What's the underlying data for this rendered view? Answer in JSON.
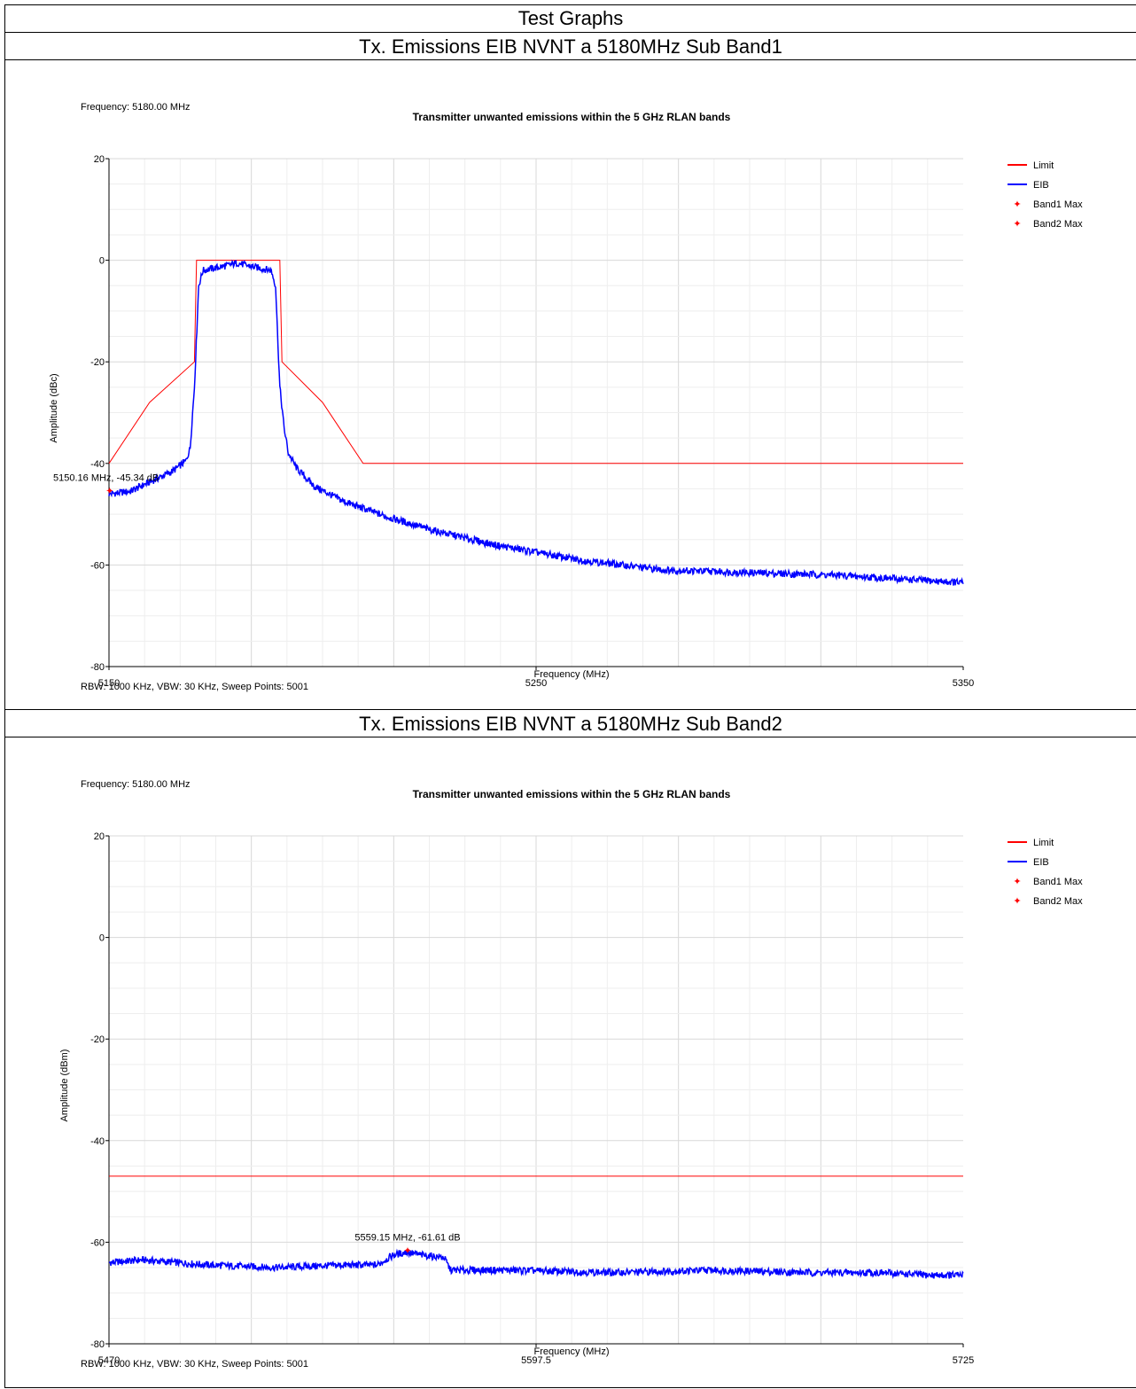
{
  "document": {
    "title": "Test Graphs"
  },
  "charts": [
    {
      "caption": "Tx. Emissions EIB NVNT a 5180MHz Sub Band1",
      "frequency_label": "Frequency: 5180.00 MHz",
      "footer": "RBW: 1000 KHz,  VBW: 30 KHz,  Sweep Points: 5001",
      "marker_label": "5150.16 MHz, -45.34 dB"
    },
    {
      "caption": "Tx. Emissions EIB NVNT a 5180MHz Sub Band2",
      "frequency_label": "Frequency: 5180.00 MHz",
      "footer": "RBW: 1000 KHz,  VBW: 30 KHz,  Sweep Points: 5001",
      "marker_label": "5559.15 MHz, -61.61 dB"
    }
  ],
  "colors": {
    "limit": "#ff0000",
    "eib": "#0000ff",
    "marker": "#ff0000",
    "grid": "#e8e8e8"
  },
  "chart_data": [
    {
      "type": "line",
      "title": "Transmitter unwanted emissions within the 5 GHz RLAN bands",
      "xlabel": "Frequency (MHz)",
      "ylabel": "Amplitude (dBc)",
      "xlim": [
        5150,
        5350
      ],
      "ylim": [
        -80,
        20
      ],
      "xticks": [
        5150,
        5250,
        5350
      ],
      "xtick_labels": [
        "5150",
        "5250",
        "5350"
      ],
      "yticks": [
        20,
        0,
        -20,
        -40,
        -60,
        -80
      ],
      "ytick_labels": [
        "20",
        "0",
        "-20",
        "-40",
        "-60",
        "-80"
      ],
      "grid": true,
      "legend_position": "top-right",
      "legend": [
        "Limit",
        "EIB",
        "Band1 Max",
        "Band2 Max"
      ],
      "series": [
        {
          "name": "Limit",
          "x": [
            5150,
            5159.5,
            5170,
            5170.5,
            5190,
            5190.5,
            5200,
            5209.5,
            5350
          ],
          "y": [
            -40,
            -28,
            -20,
            0,
            0,
            -20,
            -28,
            -40,
            -40
          ]
        },
        {
          "name": "EIB",
          "x": [
            5150,
            5155,
            5160,
            5165,
            5168,
            5169,
            5170,
            5171,
            5172,
            5175,
            5178,
            5180,
            5182,
            5185,
            5188,
            5189,
            5190,
            5191,
            5192,
            5194,
            5198,
            5205,
            5215,
            5225,
            5240,
            5260,
            5280,
            5300,
            5320,
            5340,
            5350
          ],
          "y": [
            -46,
            -45.5,
            -43.5,
            -41.5,
            -39.5,
            -37,
            -25,
            -5,
            -2,
            -1.5,
            -1,
            -0.5,
            -1,
            -1.5,
            -2,
            -5,
            -25,
            -33,
            -38,
            -41,
            -44.5,
            -47.5,
            -50.5,
            -53,
            -56,
            -59,
            -61,
            -61.5,
            -62,
            -63,
            -63.5
          ]
        }
      ],
      "markers": [
        {
          "name": "Band1 Max",
          "x": 5150.16,
          "y": -45.34,
          "label": "5150.16 MHz, -45.34 dB"
        }
      ]
    },
    {
      "type": "line",
      "title": "Transmitter unwanted emissions within the 5 GHz RLAN bands",
      "xlabel": "Frequency (MHz)",
      "ylabel": "Amplitude (dBm)",
      "xlim": [
        5470,
        5725
      ],
      "ylim": [
        -80,
        20
      ],
      "xticks": [
        5470,
        5597.5,
        5725
      ],
      "xtick_labels": [
        "5470",
        "5597.5",
        "5725"
      ],
      "yticks": [
        20,
        0,
        -20,
        -40,
        -60,
        -80
      ],
      "ytick_labels": [
        "20",
        "0",
        "-20",
        "-40",
        "-60",
        "-80"
      ],
      "grid": true,
      "legend_position": "top-right",
      "legend": [
        "Limit",
        "EIB",
        "Band1 Max",
        "Band2 Max"
      ],
      "series": [
        {
          "name": "Limit",
          "x": [
            5470,
            5725
          ],
          "y": [
            -47,
            -47
          ]
        },
        {
          "name": "EIB",
          "x": [
            5470,
            5480,
            5500,
            5520,
            5540,
            5550,
            5555,
            5559,
            5563,
            5570,
            5572,
            5590,
            5620,
            5650,
            5680,
            5700,
            5715,
            5725
          ],
          "y": [
            -64,
            -63.5,
            -64.5,
            -65,
            -64.5,
            -64.5,
            -62.5,
            -62,
            -62.5,
            -63,
            -65.5,
            -65.5,
            -66,
            -65.5,
            -66,
            -66,
            -66.5,
            -66.5
          ]
        }
      ],
      "markers": [
        {
          "name": "Band2 Max",
          "x": 5559.15,
          "y": -61.61,
          "label": "5559.15 MHz, -61.61 dB"
        }
      ]
    }
  ]
}
